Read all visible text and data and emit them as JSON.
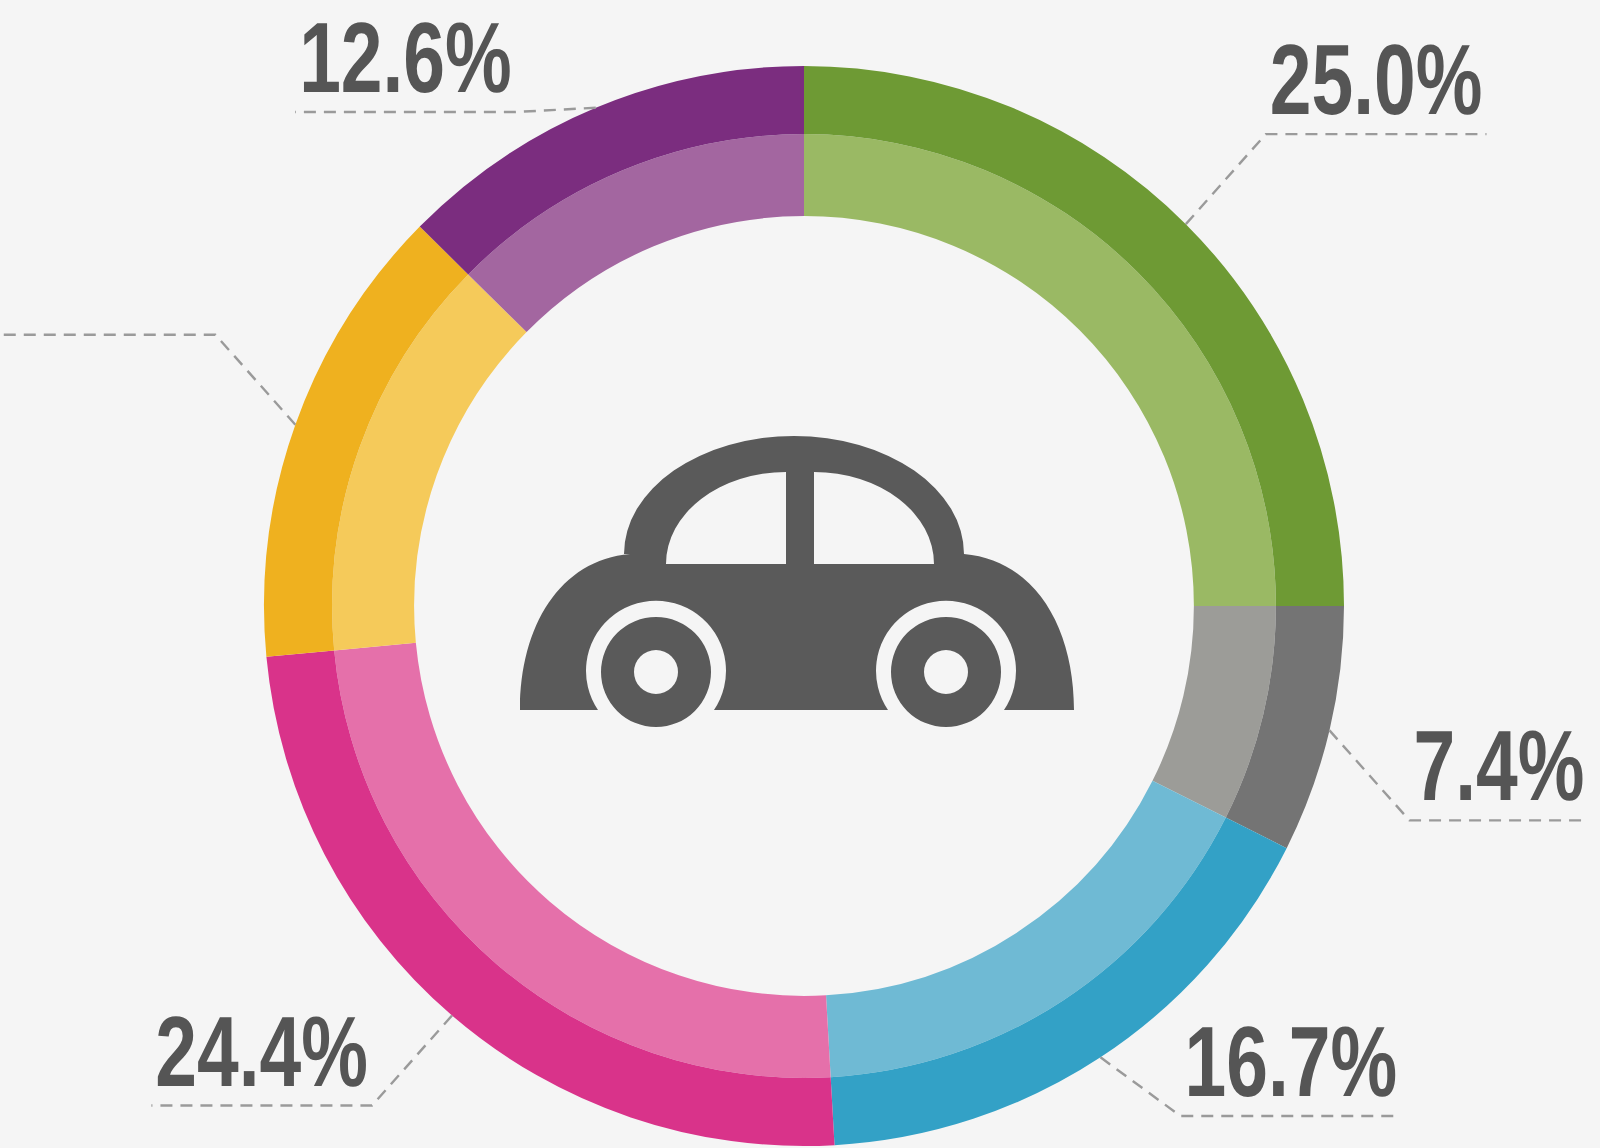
{
  "chart_data": {
    "type": "donut",
    "categories": [
      null,
      null,
      null,
      null,
      null,
      null
    ],
    "series": [
      {
        "values": [
          25.0,
          7.4,
          16.7,
          24.4,
          13.9,
          12.6
        ],
        "colors": [
          "#9ab964",
          "#9c9c98",
          "#6fbad4",
          "#e570aa",
          "#f5ca5a",
          "#a366a0"
        ]
      },
      {
        "values": [
          25.0,
          7.4,
          16.7,
          24.4,
          13.9,
          12.6
        ],
        "colors": [
          "#6e9a34",
          "#747474",
          "#33a1c6",
          "#d9338a",
          "#efb11f",
          "#7b2d7f"
        ],
        "value_labels": [
          "25.0%",
          "7.4%",
          "16.7%",
          "24.4%",
          null,
          "12.6%"
        ]
      }
    ]
  }
}
